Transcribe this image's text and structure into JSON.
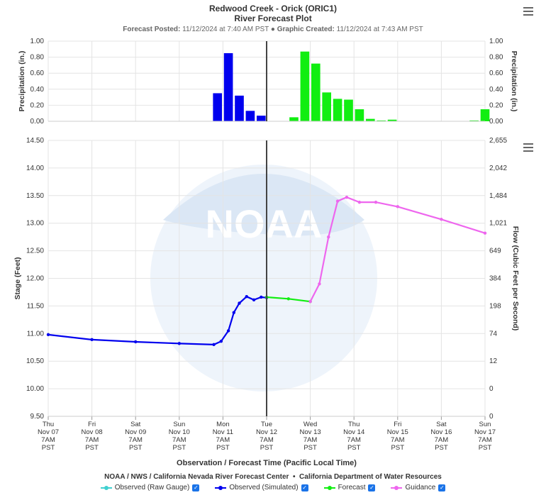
{
  "header": {
    "title_line1": "Redwood Creek - Orick (ORIC1)",
    "title_line2": "River Forecast Plot",
    "forecast_posted_label": "Forecast Posted:",
    "forecast_posted_value": "11/12/2024 at 7:40 AM PST",
    "separator": "●",
    "graphic_created_label": "Graphic Created:",
    "graphic_created_value": "11/12/2024 at 7:43 AM PST"
  },
  "icons": {
    "menu": "hamburger-menu-icon",
    "checkbox": "checkmark-icon",
    "watermark": "noaa-logo"
  },
  "colors": {
    "observed_raw": "#40d0d0",
    "observed_sim": "#0000ee",
    "forecast": "#11ee11",
    "guidance": "#ee66ee",
    "grid": "#e4e4e4",
    "now_line": "#444444"
  },
  "chart_data": [
    {
      "type": "bar",
      "ylabel": "Precipitation (in.)",
      "ylabel_right": "Precipitation (in.)",
      "ylim": [
        0,
        1.0
      ],
      "yticks": [
        "0.00",
        "0.20",
        "0.40",
        "0.60",
        "0.80",
        "1.00"
      ],
      "yticks_right": [
        "0.00",
        "0.20",
        "0.40",
        "0.60",
        "0.80",
        "1.00"
      ],
      "series": [
        {
          "name": "Observed",
          "values": [
            {
              "x": "2024-11-11 04:00",
              "y": 0.35
            },
            {
              "x": "2024-11-11 10:00",
              "y": 0.85
            },
            {
              "x": "2024-11-11 16:00",
              "y": 0.32
            },
            {
              "x": "2024-11-11 22:00",
              "y": 0.13
            },
            {
              "x": "2024-11-12 04:00",
              "y": 0.07
            }
          ]
        },
        {
          "name": "Forecast",
          "values": [
            {
              "x": "2024-11-12 22:00",
              "y": 0.05
            },
            {
              "x": "2024-11-13 04:00",
              "y": 0.87
            },
            {
              "x": "2024-11-13 10:00",
              "y": 0.72
            },
            {
              "x": "2024-11-13 16:00",
              "y": 0.36
            },
            {
              "x": "2024-11-13 22:00",
              "y": 0.28
            },
            {
              "x": "2024-11-14 04:00",
              "y": 0.27
            },
            {
              "x": "2024-11-14 10:00",
              "y": 0.15
            },
            {
              "x": "2024-11-14 16:00",
              "y": 0.03
            },
            {
              "x": "2024-11-14 22:00",
              "y": 0.01
            },
            {
              "x": "2024-11-15 04:00",
              "y": 0.02
            },
            {
              "x": "2024-11-17 01:00",
              "y": 0.01
            },
            {
              "x": "2024-11-17 07:00",
              "y": 0.15
            }
          ]
        }
      ]
    },
    {
      "type": "line",
      "ylabel": "Stage (Feet)",
      "ylabel_right": "Flow (Cubic Feet per Second)",
      "xlabel": "Observation / Forecast Time (Pacific Local Time)",
      "ylim": [
        9.5,
        14.5
      ],
      "yticks": [
        "9.50",
        "10.00",
        "10.50",
        "11.00",
        "11.50",
        "12.00",
        "12.50",
        "13.00",
        "13.50",
        "14.00",
        "14.50"
      ],
      "yticks_right": [
        "0",
        "0",
        "12",
        "74",
        "198",
        "384",
        "649",
        "1,021",
        "1,484",
        "2,042",
        "2,655"
      ],
      "xticks": [
        [
          "Thu",
          "Nov 07",
          "7AM",
          "PST"
        ],
        [
          "Fri",
          "Nov 08",
          "7AM",
          "PST"
        ],
        [
          "Sat",
          "Nov 09",
          "7AM",
          "PST"
        ],
        [
          "Sun",
          "Nov 10",
          "7AM",
          "PST"
        ],
        [
          "Mon",
          "Nov 11",
          "7AM",
          "PST"
        ],
        [
          "Tue",
          "Nov 12",
          "7AM",
          "PST"
        ],
        [
          "Wed",
          "Nov 13",
          "7AM",
          "PST"
        ],
        [
          "Thu",
          "Nov 14",
          "7AM",
          "PST"
        ],
        [
          "Fri",
          "Nov 15",
          "7AM",
          "PST"
        ],
        [
          "Sat",
          "Nov 16",
          "7AM",
          "PST"
        ],
        [
          "Sun",
          "Nov 17",
          "7AM",
          "PST"
        ]
      ],
      "x_start": "2024-11-07 07:00",
      "x_end": "2024-11-17 07:00",
      "now": "2024-11-12 07:00",
      "series": [
        {
          "name": "Observed (Simulated)",
          "values": [
            {
              "x": "2024-11-07 07:00",
              "y": 10.98
            },
            {
              "x": "2024-11-08 07:00",
              "y": 10.89
            },
            {
              "x": "2024-11-09 07:00",
              "y": 10.85
            },
            {
              "x": "2024-11-10 07:00",
              "y": 10.82
            },
            {
              "x": "2024-11-11 02:00",
              "y": 10.8
            },
            {
              "x": "2024-11-11 06:00",
              "y": 10.86
            },
            {
              "x": "2024-11-11 10:00",
              "y": 11.05
            },
            {
              "x": "2024-11-11 13:00",
              "y": 11.38
            },
            {
              "x": "2024-11-11 16:00",
              "y": 11.55
            },
            {
              "x": "2024-11-11 20:00",
              "y": 11.67
            },
            {
              "x": "2024-11-12 00:00",
              "y": 11.61
            },
            {
              "x": "2024-11-12 04:00",
              "y": 11.66
            },
            {
              "x": "2024-11-12 07:00",
              "y": 11.65
            }
          ]
        },
        {
          "name": "Forecast",
          "values": [
            {
              "x": "2024-11-12 07:00",
              "y": 11.66
            },
            {
              "x": "2024-11-12 19:00",
              "y": 11.63
            },
            {
              "x": "2024-11-13 07:00",
              "y": 11.58
            }
          ]
        },
        {
          "name": "Guidance",
          "values": [
            {
              "x": "2024-11-13 07:00",
              "y": 11.58
            },
            {
              "x": "2024-11-13 12:00",
              "y": 11.9
            },
            {
              "x": "2024-11-13 17:00",
              "y": 12.75
            },
            {
              "x": "2024-11-13 22:00",
              "y": 13.4
            },
            {
              "x": "2024-11-14 03:00",
              "y": 13.47
            },
            {
              "x": "2024-11-14 10:00",
              "y": 13.38
            },
            {
              "x": "2024-11-14 19:00",
              "y": 13.38
            },
            {
              "x": "2024-11-15 07:00",
              "y": 13.3
            },
            {
              "x": "2024-11-16 07:00",
              "y": 13.07
            },
            {
              "x": "2024-11-17 07:00",
              "y": 12.82
            }
          ]
        }
      ]
    }
  ],
  "footer": {
    "credit_left": "NOAA / NWS / California Nevada River Forecast Center",
    "credit_sep": "•",
    "credit_right": "California Department of Water Resources"
  },
  "legend": [
    {
      "label": "Observed (Raw Gauge)",
      "color": "#40d0d0",
      "checked": true
    },
    {
      "label": "Observed (Simulated)",
      "color": "#0000ee",
      "checked": true
    },
    {
      "label": "Forecast",
      "color": "#11ee11",
      "checked": true
    },
    {
      "label": "Guidance",
      "color": "#ee66ee",
      "checked": true
    }
  ]
}
